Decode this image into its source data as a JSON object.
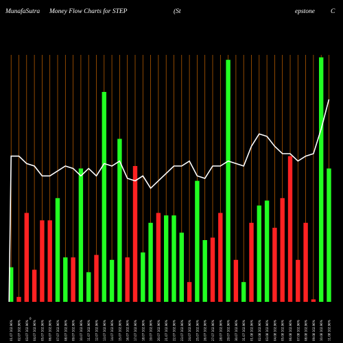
{
  "header": {
    "brand": "MunafaSutra",
    "chart_title": "Money Flow  Charts for STEP",
    "company_part1": "(St",
    "company_part2": "epstone",
    "company_part3": "C"
  },
  "colors": {
    "background": "#000000",
    "gridline": "#cc6600",
    "inflow": "#22ff22",
    "outflow": "#ff2222",
    "price_line": "#ffffff",
    "text": "#ffffff"
  },
  "chart_data": {
    "type": "bar",
    "title": "Money Flow  Charts for STEP",
    "xlabel": "",
    "ylabel": "",
    "ylim": [
      0,
      100
    ],
    "grid": true,
    "series": [
      {
        "kind": "bar",
        "values": [
          14,
          2,
          36,
          13,
          33,
          33,
          42,
          18,
          18,
          54,
          12,
          19,
          85,
          17,
          66,
          18,
          55,
          20,
          32,
          36,
          35,
          35,
          28,
          8,
          49,
          25,
          26,
          36,
          98,
          17,
          8,
          32,
          39,
          41,
          30,
          42,
          59,
          17,
          32,
          1,
          99,
          54
        ],
        "colors": [
          "g",
          "r",
          "r",
          "r",
          "r",
          "r",
          "g",
          "g",
          "r",
          "g",
          "g",
          "r",
          "g",
          "g",
          "g",
          "r",
          "r",
          "g",
          "g",
          "r",
          "g",
          "g",
          "g",
          "r",
          "g",
          "g",
          "r",
          "r",
          "g",
          "r",
          "g",
          "r",
          "g",
          "g",
          "r",
          "r",
          "r",
          "r",
          "r",
          "r",
          "g",
          "g"
        ]
      },
      {
        "kind": "line",
        "values": [
          59,
          59,
          56,
          55,
          51,
          51,
          53,
          55,
          54,
          51,
          54,
          51,
          56,
          55,
          57,
          50,
          49,
          51,
          46,
          49,
          52,
          55,
          55,
          57,
          51,
          50,
          55,
          55,
          57,
          56,
          55,
          63,
          68,
          67,
          63,
          60,
          60,
          57,
          59,
          60,
          70,
          82
        ]
      }
    ],
    "x_tick_labels": [
      "01.07 102.96%",
      "02.07 102.96%",
      "03.07 102.96%",
      "04.07 102.96%",
      "05.07 102.96%",
      "06.07 102.96%",
      "07.07 102.96%",
      "08.07 102.96%",
      "09.07 102.96%",
      "10.07 102.96%",
      "11.07 102.96%",
      "12.07 102.96%",
      "13.07 102.96%",
      "14.07 102.96%",
      "15.07 102.96%",
      "16.07 102.96%",
      "17.07 102.96%",
      "18.07 102.96%",
      "19.07 102.96%",
      "20.07 102.96%",
      "21.07 102.96%",
      "22.07 102.96%",
      "23.07 102.96%",
      "24.07 102.96%",
      "25.07 102.96%",
      "26.07 102.96%",
      "27.07 102.96%",
      "28.07 102.96%",
      "29.07 102.96%",
      "30.07 102.96%",
      "31.07 102.96%",
      "01.08 102.96%",
      "02.08 102.96%",
      "03.08 102.96%",
      "04.08 102.96%",
      "05.08 102.96%",
      "06.08 102.96%",
      "07.08 102.96%",
      "08.08 102.96%",
      "09.08 102.96%",
      "10.08 102.96%",
      "11.08 102.96%"
    ],
    "side_marker": "0"
  }
}
